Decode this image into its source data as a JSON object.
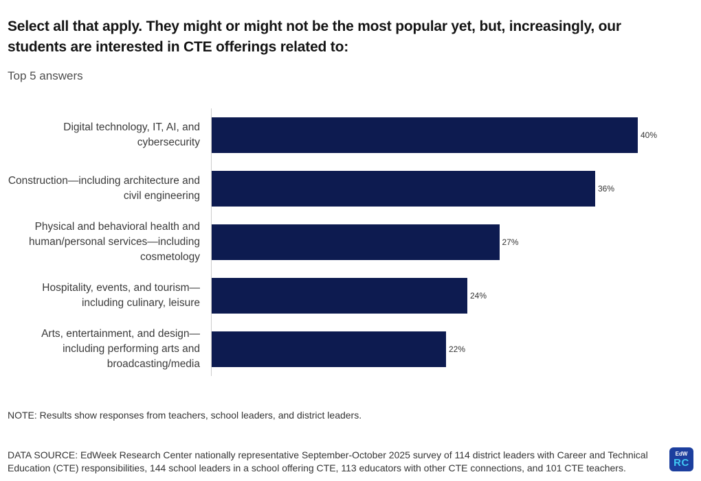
{
  "title": "Select all that apply. They might or might not be the most popular yet, but, increasingly, our students are interested in CTE offerings related to:",
  "subtitle": "Top 5 answers",
  "chart_data": {
    "type": "bar",
    "orientation": "horizontal",
    "categories": [
      "Digital technology, IT, AI, and cybersecurity",
      "Construction—including architecture and civil engineering",
      "Physical and behavioral health and human/personal services—including cosmetology",
      "Hospitality, events, and tourism—including culinary, leisure",
      "Arts, entertainment, and design—including performing arts and broadcasting/media"
    ],
    "values": [
      40,
      36,
      27,
      24,
      22
    ],
    "value_labels": [
      "40%",
      "36%",
      "27%",
      "24%",
      "22%"
    ],
    "xlim": [
      0,
      40
    ],
    "unit": "percent",
    "grid": false,
    "legend": false,
    "bar_color": "#0d1b50",
    "axis_line_color": "#cccccc"
  },
  "footer": {
    "note": "NOTE: Results show responses from teachers, school leaders, and district leaders.",
    "data_source": "DATA SOURCE: EdWeek Research Center nationally representative September-October 2025 survey of 114 district leaders with Career and Technical Education (CTE) responsibilities, 144 school leaders in a school offering CTE, 113 educators with other CTE connections, and 101 CTE teachers."
  },
  "logo": {
    "top_text": "EdW",
    "bottom_text": "RC",
    "background_color": "#1c3f9e",
    "rc_text_color": "#40c9f4"
  }
}
